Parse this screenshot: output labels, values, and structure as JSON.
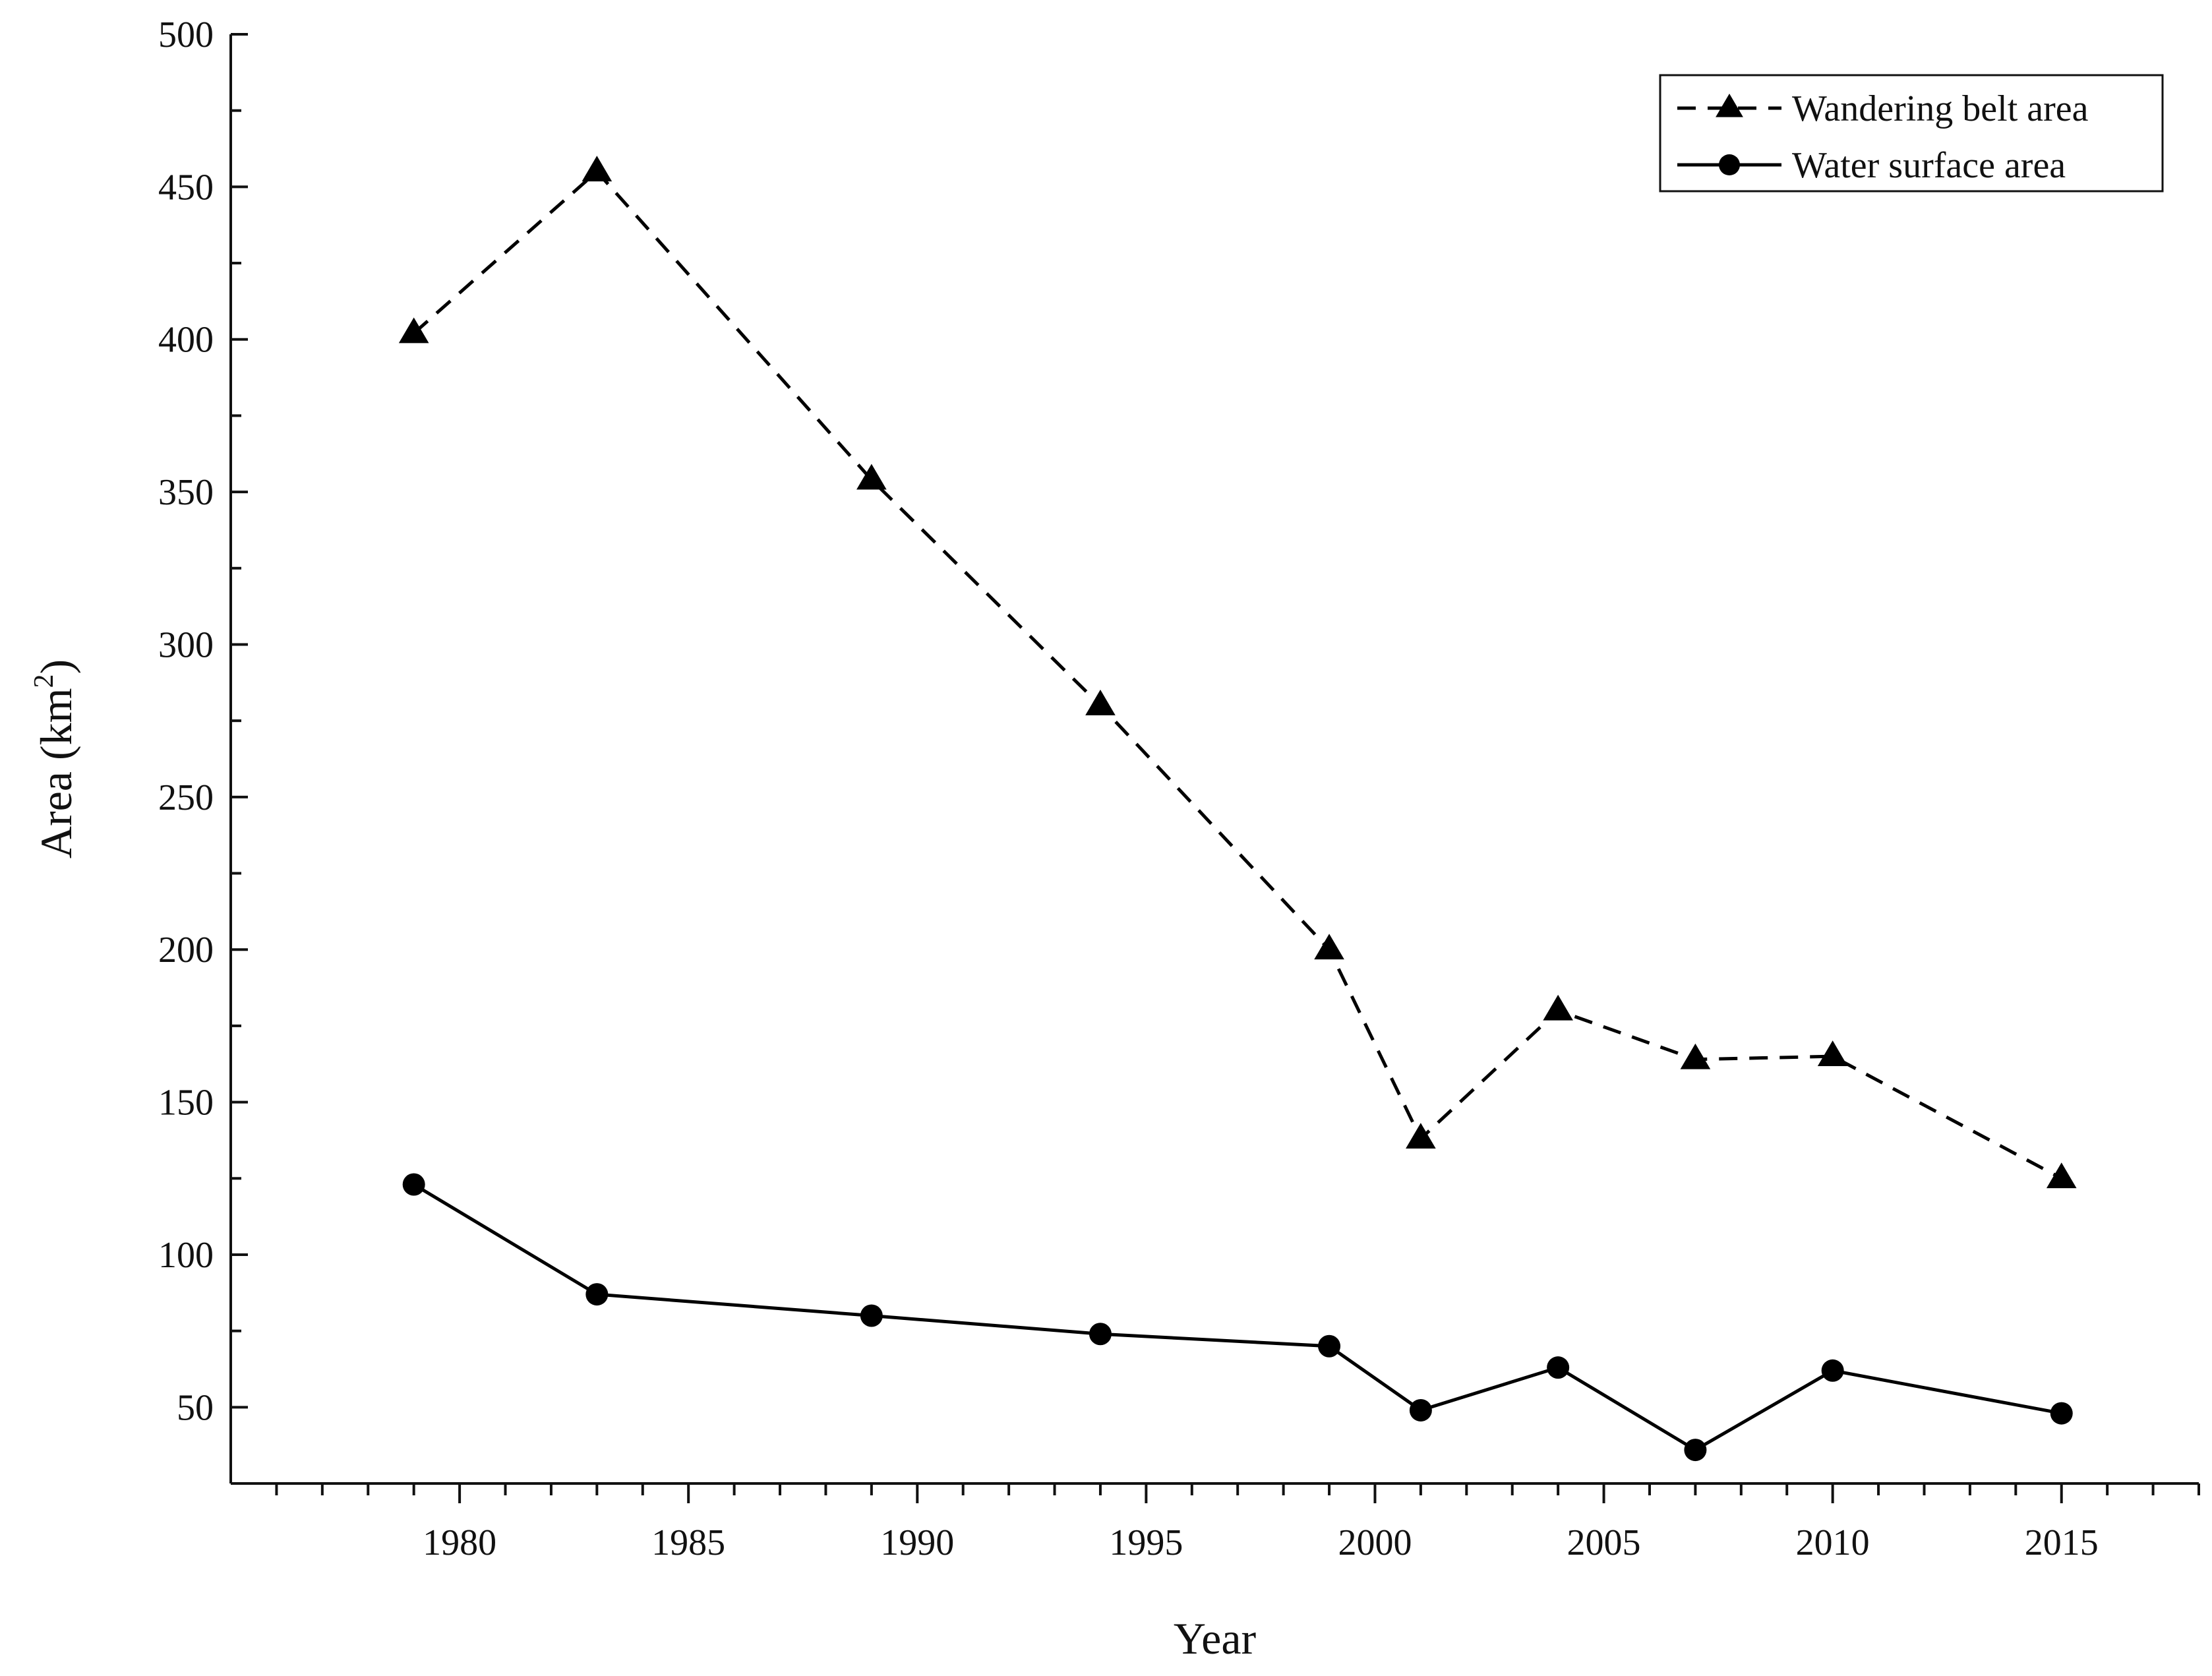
{
  "chart_data": {
    "type": "line",
    "xlabel": "Year",
    "ylabel": "Area (km",
    "ylabel_sup": "2",
    "ylabel_close": ")",
    "xlim": [
      1975,
      2018
    ],
    "ylim": [
      25,
      500
    ],
    "x_ticks": [
      1980,
      1985,
      1990,
      1995,
      2000,
      2005,
      2010,
      2015
    ],
    "y_ticks": [
      50,
      100,
      150,
      200,
      250,
      300,
      350,
      400,
      450,
      500
    ],
    "grid": false,
    "legend_position": "top-right",
    "series": [
      {
        "name": "Wandering belt area",
        "marker": "triangle",
        "line_style": "dashed",
        "color": "#000000",
        "x": [
          1979,
          1983,
          1989,
          1994,
          1999,
          2001,
          2004,
          2007,
          2010,
          2015
        ],
        "y": [
          402,
          455,
          354,
          280,
          200,
          138,
          180,
          164,
          165,
          125
        ]
      },
      {
        "name": "Water surface area",
        "marker": "circle",
        "line_style": "solid",
        "color": "#000000",
        "x": [
          1979,
          1983,
          1989,
          1994,
          1999,
          2001,
          2004,
          2007,
          2010,
          2015
        ],
        "y": [
          123,
          87,
          80,
          74,
          70,
          49,
          63,
          36,
          62,
          48
        ]
      }
    ]
  }
}
